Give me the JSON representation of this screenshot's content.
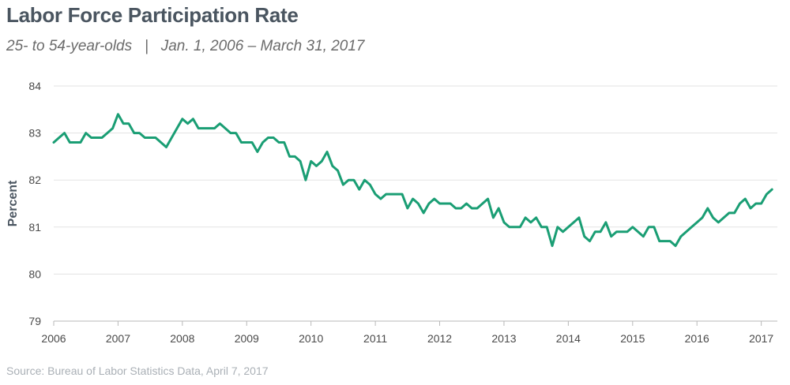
{
  "chart_data": {
    "type": "line",
    "title": "Labor Force Participation Rate",
    "subtitle": "25- to 54-year-olds   |   Jan. 1, 2006 – March 31, 2017",
    "source": "Source: Bureau of Labor Statistics Data, April 7, 2017",
    "xlabel": "",
    "ylabel": "Percent",
    "ylim": [
      79,
      84
    ],
    "yticks": [
      "79",
      "80",
      "81",
      "82",
      "83",
      "84"
    ],
    "xticks": [
      "2006",
      "2007",
      "2008",
      "2009",
      "2010",
      "2011",
      "2012",
      "2013",
      "2014",
      "2015",
      "2016",
      "2017"
    ],
    "x_start_year": 2006,
    "x_end_year": 2017.25,
    "grid": true,
    "line_color": "#1a9e74",
    "series": [
      {
        "name": "Labor Force Participation Rate, 25-54",
        "start": "2006-01",
        "values": [
          82.8,
          82.9,
          83.0,
          82.8,
          82.8,
          82.8,
          83.0,
          82.9,
          82.9,
          82.9,
          83.0,
          83.1,
          83.4,
          83.2,
          83.2,
          83.0,
          83.0,
          82.9,
          82.9,
          82.9,
          82.8,
          82.7,
          82.9,
          83.1,
          83.3,
          83.2,
          83.3,
          83.1,
          83.1,
          83.1,
          83.1,
          83.2,
          83.1,
          83.0,
          83.0,
          82.8,
          82.8,
          82.8,
          82.6,
          82.8,
          82.9,
          82.9,
          82.8,
          82.8,
          82.5,
          82.5,
          82.4,
          82.0,
          82.4,
          82.3,
          82.4,
          82.6,
          82.3,
          82.2,
          81.9,
          82.0,
          82.0,
          81.8,
          82.0,
          81.9,
          81.7,
          81.6,
          81.7,
          81.7,
          81.7,
          81.7,
          81.4,
          81.6,
          81.5,
          81.3,
          81.5,
          81.6,
          81.5,
          81.5,
          81.5,
          81.4,
          81.4,
          81.5,
          81.4,
          81.4,
          81.5,
          81.6,
          81.2,
          81.4,
          81.1,
          81.0,
          81.0,
          81.0,
          81.2,
          81.1,
          81.2,
          81.0,
          81.0,
          80.6,
          81.0,
          80.9,
          81.0,
          81.1,
          81.2,
          80.8,
          80.7,
          80.9,
          80.9,
          81.1,
          80.8,
          80.9,
          80.9,
          80.9,
          81.0,
          80.9,
          80.8,
          81.0,
          81.0,
          80.7,
          80.7,
          80.7,
          80.6,
          80.8,
          80.9,
          81.0,
          81.1,
          81.2,
          81.4,
          81.2,
          81.1,
          81.2,
          81.3,
          81.3,
          81.5,
          81.6,
          81.4,
          81.5,
          81.5,
          81.7,
          81.8
        ]
      }
    ]
  }
}
